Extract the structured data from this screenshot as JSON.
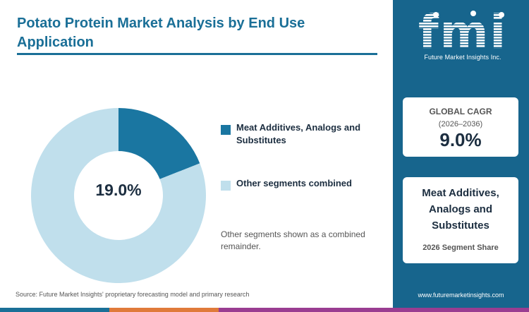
{
  "title": "Potato Protein Market Analysis by End Use Application",
  "chart_data": {
    "type": "pie",
    "donut": true,
    "categories": [
      "Meat Additives, Analogs and Substitutes",
      "Other segments combined"
    ],
    "values": [
      19.0,
      81.0
    ],
    "unit": "%",
    "center_label": "19.0%",
    "legend_position": "right"
  },
  "colors": {
    "highlight": "#1a76a1",
    "remainder": "#c0dfec",
    "accent": "#17658d",
    "bar": [
      "#1a6f97",
      "#e07a3a",
      "#9a3d91",
      "#5aa3c7"
    ]
  },
  "note": "Other segments shown as a combined remainder.",
  "source": "Source: Future Market Insights' proprietary forecasting model and primary research",
  "logo": {
    "letters": "fmi",
    "tagline": "Future Market Insights Inc."
  },
  "cagr_card": {
    "label": "GLOBAL CAGR",
    "period": "(2026–2036)",
    "value": "9.0%"
  },
  "segment_card": {
    "label": "Meat Additives, Analogs and Substitutes",
    "sub": "2026 Segment Share"
  },
  "website": "www.futuremarketinsights.com"
}
